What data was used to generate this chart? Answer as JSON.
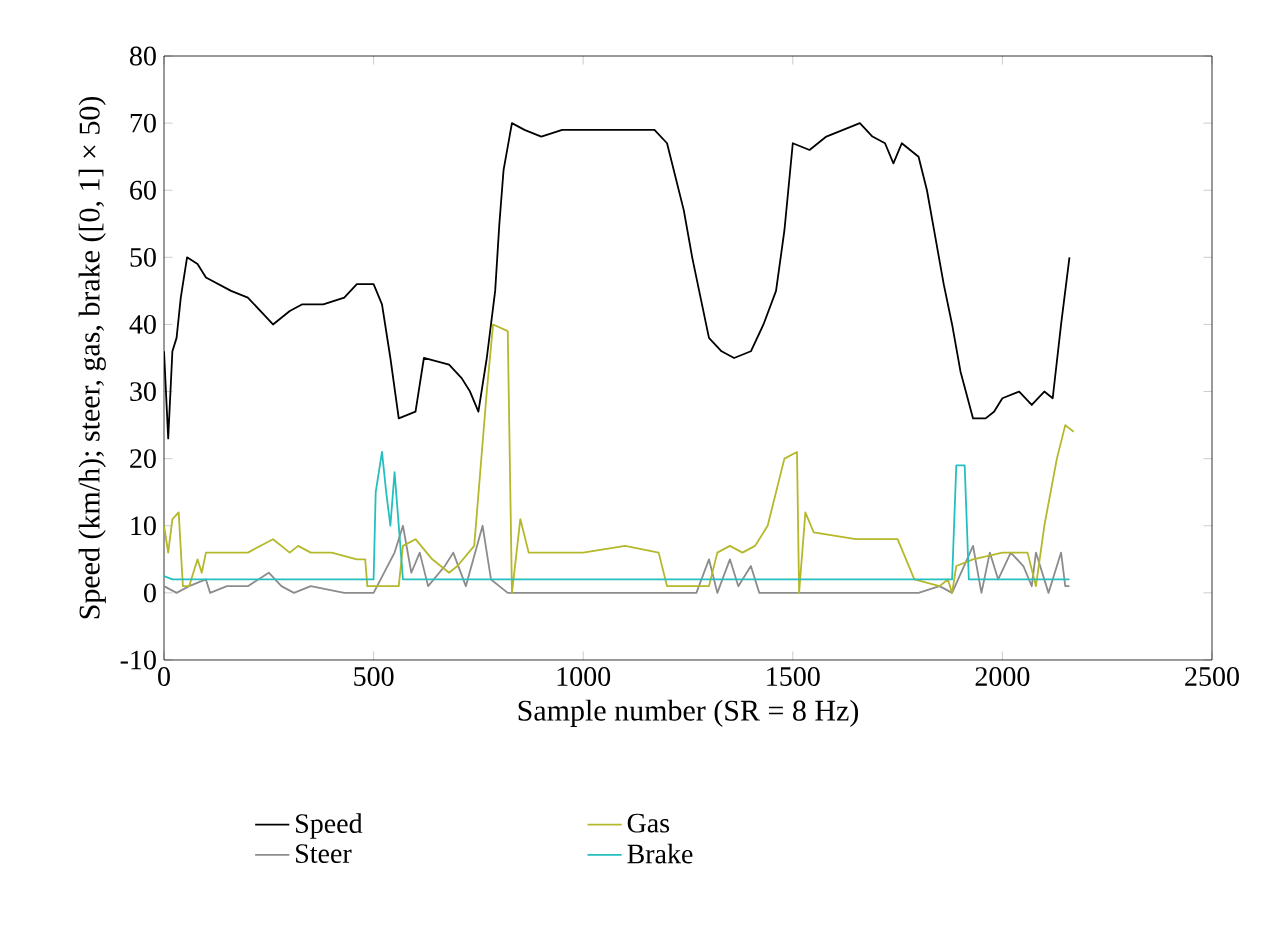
{
  "chart_data": {
    "type": "line",
    "xlabel": "Sample number (SR = 8 Hz)",
    "ylabel": "Speed (km/h); steer, gas, brake ([0, 1] × 50)",
    "xlim": [
      0,
      2500
    ],
    "ylim": [
      -10,
      80
    ],
    "xticks": [
      0,
      500,
      1000,
      1500,
      2000,
      2500
    ],
    "yticks": [
      -10,
      0,
      10,
      20,
      30,
      40,
      50,
      60,
      70,
      80
    ],
    "grid": false,
    "legend": "bottom",
    "marker": "none",
    "line_style": "solid",
    "series": [
      {
        "name": "Speed",
        "color": "#000000",
        "x": [
          0,
          10,
          20,
          30,
          40,
          55,
          80,
          100,
          130,
          160,
          200,
          230,
          260,
          300,
          330,
          380,
          430,
          460,
          500,
          520,
          540,
          560,
          600,
          620,
          680,
          710,
          730,
          750,
          770,
          790,
          800,
          810,
          830,
          860,
          900,
          950,
          1000,
          1170,
          1200,
          1220,
          1240,
          1260,
          1280,
          1300,
          1330,
          1360,
          1400,
          1430,
          1460,
          1480,
          1500,
          1540,
          1580,
          1620,
          1660,
          1690,
          1720,
          1740,
          1760,
          1800,
          1820,
          1840,
          1860,
          1880,
          1900,
          1930,
          1960,
          1980,
          2000,
          2040,
          2070,
          2100,
          2120,
          2140,
          2160
        ],
        "values": [
          36,
          23,
          36,
          38,
          44,
          50,
          49,
          47,
          46,
          45,
          44,
          42,
          40,
          42,
          43,
          43,
          44,
          46,
          46,
          43,
          35,
          26,
          27,
          35,
          34,
          32,
          30,
          27,
          35,
          45,
          55,
          63,
          70,
          69,
          68,
          69,
          69,
          69,
          67,
          62,
          57,
          50,
          44,
          38,
          36,
          35,
          36,
          40,
          45,
          54,
          67,
          66,
          68,
          69,
          70,
          68,
          67,
          64,
          67,
          65,
          60,
          53,
          46,
          40,
          33,
          26,
          26,
          27,
          29,
          30,
          28,
          30,
          29,
          40,
          50
        ]
      },
      {
        "name": "Steer",
        "color": "#8c8c8c",
        "x": [
          0,
          30,
          60,
          100,
          110,
          150,
          200,
          250,
          280,
          310,
          350,
          430,
          500,
          550,
          570,
          590,
          610,
          630,
          670,
          690,
          720,
          760,
          780,
          820,
          850,
          1200,
          1270,
          1300,
          1320,
          1350,
          1370,
          1400,
          1420,
          1500,
          1550,
          1700,
          1800,
          1850,
          1880,
          1930,
          1950,
          1970,
          1990,
          2020,
          2050,
          2070,
          2080,
          2110,
          2140,
          2150,
          2160
        ],
        "values": [
          1,
          0,
          1,
          2,
          0,
          1,
          1,
          3,
          1,
          0,
          1,
          0,
          0,
          6,
          10,
          3,
          6,
          1,
          4,
          6,
          1,
          10,
          2,
          0,
          0,
          0,
          0,
          5,
          0,
          5,
          1,
          4,
          0,
          0,
          0,
          0,
          0,
          1,
          0,
          7,
          0,
          6,
          2,
          6,
          4,
          1,
          6,
          0,
          6,
          1,
          1
        ]
      },
      {
        "name": "Gas",
        "color": "#b5b82a",
        "x": [
          0,
          10,
          20,
          35,
          45,
          60,
          80,
          90,
          100,
          150,
          200,
          260,
          300,
          320,
          350,
          400,
          460,
          480,
          485,
          560,
          570,
          600,
          640,
          680,
          700,
          740,
          770,
          785,
          820,
          830,
          850,
          870,
          1000,
          1100,
          1180,
          1200,
          1300,
          1320,
          1350,
          1380,
          1410,
          1440,
          1480,
          1510,
          1515,
          1530,
          1550,
          1650,
          1750,
          1790,
          1850,
          1870,
          1880,
          1890,
          1930,
          2000,
          2060,
          2080,
          2100,
          2130,
          2150,
          2170
        ],
        "values": [
          10,
          6,
          11,
          12,
          1,
          1,
          5,
          3,
          6,
          6,
          6,
          8,
          6,
          7,
          6,
          6,
          5,
          5,
          1,
          1,
          7,
          8,
          5,
          3,
          4,
          7,
          30,
          40,
          39,
          0,
          11,
          6,
          6,
          7,
          6,
          1,
          1,
          6,
          7,
          6,
          7,
          10,
          20,
          21,
          0,
          12,
          9,
          8,
          8,
          2,
          1,
          2,
          0,
          4,
          5,
          6,
          6,
          1,
          10,
          20,
          25,
          24
        ]
      },
      {
        "name": "Brake",
        "color": "#25bfbf",
        "x": [
          0,
          20,
          500,
          505,
          520,
          530,
          540,
          550,
          560,
          570,
          1880,
          1890,
          1900,
          1910,
          1920,
          2160
        ],
        "values": [
          2.5,
          2,
          2,
          15,
          21,
          15,
          10,
          18,
          10,
          2,
          2,
          19,
          19,
          19,
          2,
          2
        ]
      }
    ]
  }
}
